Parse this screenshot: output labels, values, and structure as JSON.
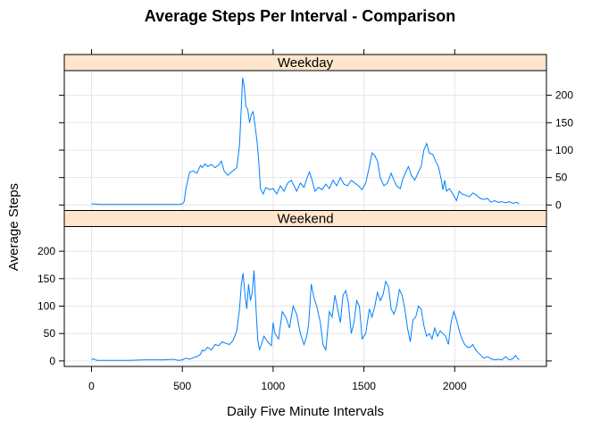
{
  "chart_data": {
    "type": "line",
    "title": "Average Steps Per Interval - Comparison",
    "xlabel": "Daily Five Minute Intervals",
    "ylabel": "Average Steps",
    "xlim": [
      -150,
      2505
    ],
    "ylim": [
      -10,
      245
    ],
    "x_ticks": [
      0,
      500,
      1000,
      1500,
      2000
    ],
    "y_ticks": [
      0,
      50,
      100,
      150,
      200
    ],
    "grid": true,
    "line_color": "#0080ff",
    "strip_color": "#ffe5cc",
    "panels": [
      {
        "name": "Weekday",
        "points": [
          [
            0,
            2
          ],
          [
            60,
            1
          ],
          [
            120,
            1
          ],
          [
            200,
            1
          ],
          [
            300,
            1
          ],
          [
            400,
            1
          ],
          [
            480,
            1
          ],
          [
            500,
            2
          ],
          [
            510,
            6
          ],
          [
            520,
            30
          ],
          [
            540,
            60
          ],
          [
            560,
            62
          ],
          [
            580,
            58
          ],
          [
            600,
            72
          ],
          [
            610,
            68
          ],
          [
            625,
            75
          ],
          [
            640,
            70
          ],
          [
            660,
            74
          ],
          [
            680,
            68
          ],
          [
            700,
            73
          ],
          [
            715,
            80
          ],
          [
            730,
            62
          ],
          [
            750,
            54
          ],
          [
            770,
            60
          ],
          [
            800,
            68
          ],
          [
            815,
            110
          ],
          [
            825,
            180
          ],
          [
            832,
            232
          ],
          [
            840,
            218
          ],
          [
            850,
            180
          ],
          [
            860,
            175
          ],
          [
            870,
            150
          ],
          [
            880,
            165
          ],
          [
            890,
            170
          ],
          [
            900,
            145
          ],
          [
            910,
            120
          ],
          [
            920,
            85
          ],
          [
            930,
            30
          ],
          [
            945,
            20
          ],
          [
            960,
            32
          ],
          [
            980,
            28
          ],
          [
            1000,
            30
          ],
          [
            1020,
            20
          ],
          [
            1040,
            35
          ],
          [
            1060,
            25
          ],
          [
            1080,
            40
          ],
          [
            1100,
            45
          ],
          [
            1115,
            35
          ],
          [
            1130,
            25
          ],
          [
            1150,
            40
          ],
          [
            1170,
            32
          ],
          [
            1190,
            52
          ],
          [
            1200,
            60
          ],
          [
            1215,
            45
          ],
          [
            1230,
            25
          ],
          [
            1250,
            32
          ],
          [
            1270,
            28
          ],
          [
            1290,
            38
          ],
          [
            1310,
            30
          ],
          [
            1330,
            45
          ],
          [
            1350,
            35
          ],
          [
            1370,
            50
          ],
          [
            1390,
            38
          ],
          [
            1410,
            35
          ],
          [
            1430,
            45
          ],
          [
            1450,
            40
          ],
          [
            1470,
            35
          ],
          [
            1490,
            28
          ],
          [
            1510,
            40
          ],
          [
            1530,
            70
          ],
          [
            1545,
            95
          ],
          [
            1560,
            90
          ],
          [
            1575,
            80
          ],
          [
            1590,
            50
          ],
          [
            1610,
            35
          ],
          [
            1630,
            40
          ],
          [
            1650,
            58
          ],
          [
            1665,
            45
          ],
          [
            1680,
            35
          ],
          [
            1700,
            30
          ],
          [
            1715,
            48
          ],
          [
            1730,
            60
          ],
          [
            1745,
            70
          ],
          [
            1760,
            55
          ],
          [
            1780,
            45
          ],
          [
            1800,
            60
          ],
          [
            1815,
            70
          ],
          [
            1830,
            100
          ],
          [
            1845,
            112
          ],
          [
            1860,
            95
          ],
          [
            1880,
            92
          ],
          [
            1895,
            80
          ],
          [
            1910,
            70
          ],
          [
            1925,
            48
          ],
          [
            1935,
            28
          ],
          [
            1945,
            45
          ],
          [
            1955,
            25
          ],
          [
            1970,
            30
          ],
          [
            1990,
            20
          ],
          [
            2010,
            8
          ],
          [
            2025,
            25
          ],
          [
            2040,
            20
          ],
          [
            2060,
            18
          ],
          [
            2080,
            15
          ],
          [
            2100,
            22
          ],
          [
            2120,
            18
          ],
          [
            2140,
            12
          ],
          [
            2160,
            10
          ],
          [
            2180,
            12
          ],
          [
            2200,
            5
          ],
          [
            2220,
            8
          ],
          [
            2240,
            5
          ],
          [
            2260,
            6
          ],
          [
            2280,
            4
          ],
          [
            2300,
            6
          ],
          [
            2320,
            3
          ],
          [
            2340,
            5
          ],
          [
            2355,
            2
          ]
        ]
      },
      {
        "name": "Weekend",
        "points": [
          [
            0,
            2
          ],
          [
            10,
            4
          ],
          [
            30,
            1
          ],
          [
            100,
            1
          ],
          [
            200,
            1
          ],
          [
            300,
            2
          ],
          [
            400,
            2
          ],
          [
            450,
            3
          ],
          [
            480,
            1
          ],
          [
            500,
            2
          ],
          [
            520,
            5
          ],
          [
            540,
            3
          ],
          [
            560,
            6
          ],
          [
            580,
            8
          ],
          [
            600,
            12
          ],
          [
            610,
            20
          ],
          [
            620,
            18
          ],
          [
            640,
            25
          ],
          [
            660,
            20
          ],
          [
            680,
            30
          ],
          [
            700,
            28
          ],
          [
            720,
            35
          ],
          [
            740,
            32
          ],
          [
            760,
            30
          ],
          [
            780,
            38
          ],
          [
            800,
            55
          ],
          [
            815,
            95
          ],
          [
            825,
            140
          ],
          [
            835,
            160
          ],
          [
            845,
            120
          ],
          [
            855,
            95
          ],
          [
            865,
            140
          ],
          [
            875,
            110
          ],
          [
            885,
            125
          ],
          [
            895,
            165
          ],
          [
            905,
            100
          ],
          [
            915,
            40
          ],
          [
            925,
            20
          ],
          [
            935,
            30
          ],
          [
            950,
            45
          ],
          [
            970,
            35
          ],
          [
            990,
            28
          ],
          [
            1000,
            70
          ],
          [
            1010,
            50
          ],
          [
            1030,
            40
          ],
          [
            1050,
            90
          ],
          [
            1070,
            80
          ],
          [
            1090,
            60
          ],
          [
            1110,
            100
          ],
          [
            1130,
            85
          ],
          [
            1150,
            50
          ],
          [
            1170,
            30
          ],
          [
            1185,
            45
          ],
          [
            1195,
            65
          ],
          [
            1210,
            140
          ],
          [
            1225,
            115
          ],
          [
            1240,
            100
          ],
          [
            1260,
            70
          ],
          [
            1275,
            30
          ],
          [
            1290,
            20
          ],
          [
            1310,
            90
          ],
          [
            1325,
            80
          ],
          [
            1340,
            120
          ],
          [
            1355,
            95
          ],
          [
            1370,
            70
          ],
          [
            1385,
            120
          ],
          [
            1400,
            128
          ],
          [
            1415,
            105
          ],
          [
            1430,
            50
          ],
          [
            1445,
            70
          ],
          [
            1460,
            110
          ],
          [
            1475,
            100
          ],
          [
            1490,
            40
          ],
          [
            1510,
            50
          ],
          [
            1530,
            95
          ],
          [
            1545,
            80
          ],
          [
            1560,
            100
          ],
          [
            1575,
            125
          ],
          [
            1590,
            110
          ],
          [
            1605,
            120
          ],
          [
            1620,
            145
          ],
          [
            1635,
            135
          ],
          [
            1650,
            95
          ],
          [
            1665,
            85
          ],
          [
            1680,
            100
          ],
          [
            1695,
            130
          ],
          [
            1710,
            120
          ],
          [
            1725,
            95
          ],
          [
            1740,
            60
          ],
          [
            1755,
            35
          ],
          [
            1770,
            75
          ],
          [
            1785,
            80
          ],
          [
            1800,
            100
          ],
          [
            1815,
            95
          ],
          [
            1830,
            65
          ],
          [
            1845,
            45
          ],
          [
            1860,
            50
          ],
          [
            1875,
            40
          ],
          [
            1890,
            60
          ],
          [
            1905,
            45
          ],
          [
            1920,
            55
          ],
          [
            1935,
            50
          ],
          [
            1950,
            45
          ],
          [
            1965,
            30
          ],
          [
            1980,
            70
          ],
          [
            1995,
            90
          ],
          [
            2010,
            75
          ],
          [
            2025,
            55
          ],
          [
            2040,
            40
          ],
          [
            2055,
            30
          ],
          [
            2070,
            25
          ],
          [
            2085,
            25
          ],
          [
            2100,
            30
          ],
          [
            2115,
            20
          ],
          [
            2130,
            15
          ],
          [
            2145,
            10
          ],
          [
            2160,
            5
          ],
          [
            2180,
            8
          ],
          [
            2200,
            4
          ],
          [
            2220,
            2
          ],
          [
            2240,
            3
          ],
          [
            2260,
            2
          ],
          [
            2280,
            8
          ],
          [
            2300,
            2
          ],
          [
            2320,
            4
          ],
          [
            2335,
            10
          ],
          [
            2345,
            5
          ],
          [
            2355,
            2
          ]
        ]
      }
    ]
  }
}
